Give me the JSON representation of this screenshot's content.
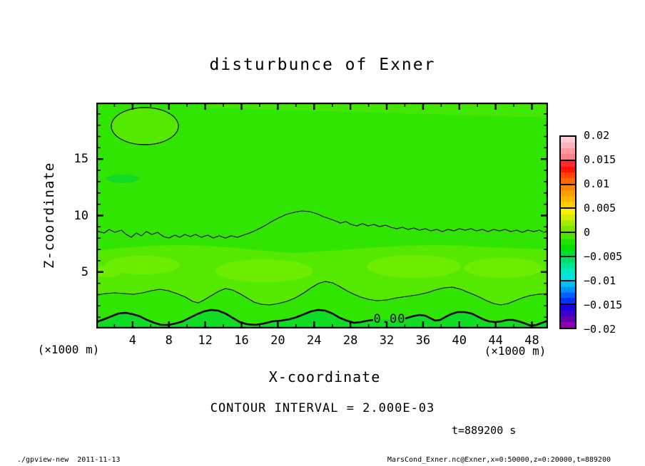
{
  "header": {
    "title": "disturbunce of Exner"
  },
  "chart_data": {
    "type": "heatmap",
    "subtype": "filled-contour-section",
    "title": "disturbunce of Exner",
    "xlabel": "X-coordinate",
    "ylabel": "Z-coordinate",
    "x_unit_label": "(×1000 m)",
    "y_unit_label": "(×1000 m)",
    "x_range": [
      0,
      50
    ],
    "z_range": [
      0,
      20
    ],
    "x_major_ticks": [
      4,
      8,
      12,
      16,
      20,
      24,
      28,
      32,
      36,
      40,
      44,
      48
    ],
    "x_minor_tick_step": 2,
    "z_major_ticks": [
      5,
      10,
      15
    ],
    "z_minor_tick_step": 1,
    "grid": false,
    "contour_interval_label": "CONTOUR INTERVAL = 2.000E-03",
    "contour_line_label": "0.00",
    "time_label": "t=889200 s",
    "colorbar": {
      "position": "right",
      "value_range": [
        -0.02,
        0.02
      ],
      "tick_labels": [
        "0.02",
        "0.015",
        "0.01",
        "0.005",
        "0",
        "−0.005",
        "−0.01",
        "−0.015",
        "−0.02"
      ],
      "segment_colors": [
        [
          "#ffccd4",
          "#ffb4bc",
          "#ff9aa2",
          "#ff8288"
        ],
        [
          "#ff2a2a",
          "#ff1400",
          "#ff4600",
          "#ff6a00"
        ],
        [
          "#ff8600",
          "#ff9e00",
          "#ffb600",
          "#ffce00"
        ],
        [
          "#f6f200",
          "#d4ee00",
          "#a6ea00",
          "#7ae600"
        ],
        [
          "#4ce400",
          "#28e200",
          "#08e000",
          "#00de32"
        ],
        [
          "#00e066",
          "#00e496",
          "#00e8c2",
          "#00e2e2"
        ],
        [
          "#00c2f2",
          "#0092fa",
          "#005eff",
          "#0032ff"
        ],
        [
          "#1a00ea",
          "#3c00ca",
          "#6200b2",
          "#9000aa"
        ]
      ]
    },
    "field_colors": {
      "background_green": "#30e502",
      "band_green": "#55e900",
      "patch_green": "#6dee00",
      "deep_green": "#10dc24",
      "blob_green": "#0cda2e"
    },
    "features": [
      "closed thin contour ellipse near top-left (x≈5, z≈18) enclosing slightly positive values",
      "noisy thin contour running across the domain near z≈8.5 with a broad bump up to z≈10 around x≈25",
      "light positive band between z≈3 and z≈7 with brighter patches",
      "wavy thin contour near z≈3 and thick 0.00 contour near z≈1 with surface layer of slightly negative values below"
    ]
  },
  "footer": {
    "left": "./gpview-new  2011-11-13",
    "right": "MarsCond_Exner.nc@Exner,x=0:50000,z=0:20000,t=889200"
  }
}
